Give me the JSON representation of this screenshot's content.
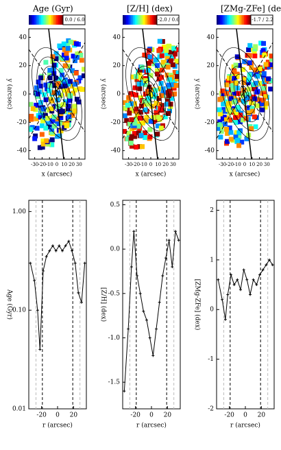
{
  "chart_data": [
    {
      "type": "map",
      "title": "Age (Gyr)",
      "colorbar_label": "0.0 / 6.0",
      "xlabel": "x (arcsec)",
      "ylabel": "y (arcsec)",
      "xlim": [
        -38,
        38
      ],
      "xticks": [
        -30,
        -20,
        -10,
        0,
        10,
        20,
        30
      ],
      "ylim": [
        -46,
        46
      ],
      "yticks": [
        40,
        20,
        0,
        -20,
        -40
      ]
    },
    {
      "type": "map",
      "title": "[Z/H] (dex)",
      "colorbar_label": "-2.0 / 0.6",
      "xlabel": "x (arcsec)",
      "ylabel": "y (arcsec)",
      "xlim": [
        -38,
        38
      ],
      "xticks": [
        -30,
        -20,
        -10,
        0,
        10,
        20,
        30
      ],
      "ylim": [
        -46,
        46
      ],
      "yticks": [
        40,
        20,
        0,
        -20,
        -40
      ]
    },
    {
      "type": "map",
      "title": "[ZMg-ZFe] (dex)",
      "colorbar_label": "-1.7 / 2.2",
      "xlabel": "x (arcsec)",
      "ylabel": "y (arcsec)",
      "xlim": [
        -38,
        38
      ],
      "xticks": [
        -30,
        -20,
        -10,
        0,
        10,
        20,
        30
      ],
      "ylim": [
        -46,
        46
      ],
      "yticks": [
        40,
        20,
        0,
        -20,
        -40
      ]
    },
    {
      "type": "line",
      "xlabel": "r (arcsec)",
      "ylabel": "Age (Gyr)",
      "log_y": true,
      "xlim": [
        -36,
        36
      ],
      "xticks": [
        -20,
        0,
        20
      ],
      "ylim": [
        0.01,
        1.3
      ],
      "yticks": [
        {
          "value": 0.01,
          "label": "0.01"
        },
        {
          "value": 0.1,
          "label": "0.10"
        },
        {
          "value": 1,
          "label": "1.00"
        }
      ],
      "vlines": [
        -19,
        19
      ],
      "vlines_light": [
        -27,
        28
      ],
      "x": [
        -34,
        -29,
        -25,
        -22,
        -18,
        -14,
        -10,
        -6,
        -2,
        2,
        6,
        10,
        14,
        18,
        22,
        26,
        30,
        34
      ],
      "series": [
        {
          "name": "Age",
          "color": "#000000",
          "values": [
            0.3,
            0.2,
            0.1,
            0.04,
            0.25,
            0.35,
            0.4,
            0.45,
            0.4,
            0.45,
            0.4,
            0.45,
            0.5,
            0.4,
            0.3,
            0.15,
            0.12,
            0.3
          ]
        }
      ]
    },
    {
      "type": "line",
      "xlabel": "r (arcsec)",
      "ylabel": "[Z/H] (dex)",
      "log_y": false,
      "xlim": [
        -36,
        36
      ],
      "xticks": [
        -20,
        0,
        20
      ],
      "ylim": [
        -1.8,
        0.55
      ],
      "yticks": [
        0.5,
        {
          "value": 0,
          "label": "0.0"
        },
        -0.5,
        {
          "value": -1,
          "label": "-1.0"
        },
        -1.5
      ],
      "vlines": [
        -19,
        19
      ],
      "vlines_light": [
        -27,
        28
      ],
      "x": [
        -34,
        -29,
        -25,
        -22,
        -18,
        -14,
        -10,
        -6,
        -2,
        2,
        6,
        10,
        14,
        18,
        22,
        26,
        30,
        34
      ],
      "series": [
        {
          "name": "[Z/H]",
          "color": "#000000",
          "values": [
            -1.6,
            -0.9,
            -0.2,
            0.2,
            -0.3,
            -0.5,
            -0.7,
            -0.8,
            -1.0,
            -1.2,
            -0.9,
            -0.6,
            -0.3,
            -0.1,
            0.1,
            -0.2,
            0.2,
            0.1
          ]
        }
      ]
    },
    {
      "type": "line",
      "xlabel": "r (arcsec)",
      "ylabel": "[ZMg-ZFe] (dex)",
      "log_y": false,
      "xlim": [
        -36,
        36
      ],
      "xticks": [
        -20,
        0,
        20
      ],
      "ylim": [
        -2,
        2.2
      ],
      "yticks": [
        2,
        1,
        0,
        -1,
        -2
      ],
      "vlines": [
        -19,
        19
      ],
      "vlines_light": [
        -27,
        28
      ],
      "x": [
        -34,
        -29,
        -25,
        -22,
        -18,
        -14,
        -10,
        -6,
        -2,
        2,
        6,
        10,
        14,
        18,
        22,
        26,
        30,
        34
      ],
      "series": [
        {
          "name": "[ZMg-ZFe]",
          "color": "#000000",
          "values": [
            0.6,
            0.2,
            -0.2,
            0.3,
            0.7,
            0.5,
            0.6,
            0.4,
            0.8,
            0.6,
            0.3,
            0.6,
            0.5,
            0.7,
            0.8,
            0.9,
            1.0,
            0.9
          ]
        }
      ]
    }
  ]
}
